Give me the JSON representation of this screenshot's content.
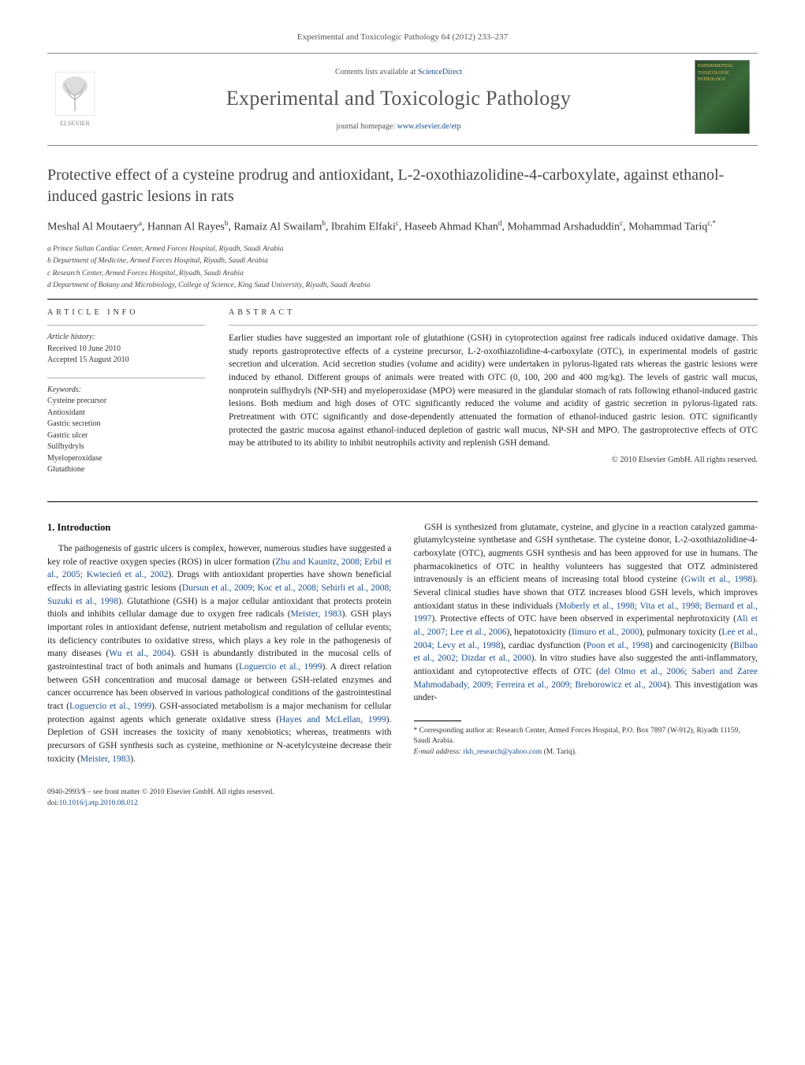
{
  "journal_ref": "Experimental and Toxicologic Pathology 64 (2012) 233–237",
  "header": {
    "publisher": "ELSEVIER",
    "contents_prefix": "Contents lists available at ",
    "contents_link": "ScienceDirect",
    "journal_name": "Experimental and Toxicologic Pathology",
    "homepage_prefix": "journal homepage: ",
    "homepage_url": "www.elsevier.de/etp",
    "cover_label": "EXPERIMENTAL TOXICOLOGIC PATHOLOGY"
  },
  "title": "Protective effect of a cysteine prodrug and antioxidant, L-2-oxothiazolidine-4-carboxylate, against ethanol-induced gastric lesions in rats",
  "authors_html": "Meshal Al Moutaery<sup>a</sup>, Hannan Al Rayes<sup>b</sup>, Ramaiz Al Swailam<sup>b</sup>, Ibrahim Elfaki<sup>c</sup>, Haseeb Ahmad Khan<sup>d</sup>, Mohammad Arshaduddin<sup>c</sup>, Mohammad Tariq<sup>c,*</sup>",
  "affiliations": [
    "a Prince Sultan Cardiac Center, Armed Forces Hospital, Riyadh, Saudi Arabia",
    "b Department of Medicine, Armed Forces Hospital, Riyadh, Saudi Arabia",
    "c Research Center, Armed Forces Hospital, Riyadh, Saudi Arabia",
    "d Department of Botany and Microbiology, College of Science, King Saud University, Riyadh, Saudi Arabia"
  ],
  "article_info": {
    "section_label": "article info",
    "history_label": "Article history:",
    "received": "Received 10 June 2010",
    "accepted": "Accepted 15 August 2010",
    "keywords_label": "Keywords:",
    "keywords": [
      "Cysteine precursor",
      "Antioxidant",
      "Gastric secretion",
      "Gastric ulcer",
      "Sulfhydryls",
      "Myeloperoxidase",
      "Glutathione"
    ]
  },
  "abstract": {
    "section_label": "abstract",
    "text": "Earlier studies have suggested an important role of glutathione (GSH) in cytoprotection against free radicals induced oxidative damage. This study reports gastroprotective effects of a cysteine precursor, L-2-oxothiazolidine-4-carboxylate (OTC), in experimental models of gastric secretion and ulceration. Acid secretion studies (volume and acidity) were undertaken in pylorus-ligated rats whereas the gastric lesions were induced by ethanol. Different groups of animals were treated with OTC (0, 100, 200 and 400 mg/kg). The levels of gastric wall mucus, nonprotein sulfhydryls (NP-SH) and myeloperoxidase (MPO) were measured in the glandular stomach of rats following ethanol-induced gastric lesions. Both medium and high doses of OTC significantly reduced the volume and acidity of gastric secretion in pylorus-ligated rats. Pretreatment with OTC significantly and dose-dependently attenuated the formation of ethanol-induced gastric lesion. OTC significantly protected the gastric mucosa against ethanol-induced depletion of gastric wall mucus, NP-SH and MPO. The gastroprotective effects of OTC may be attributed to its ability to inhibit neutrophils activity and replenish GSH demand.",
    "copyright": "© 2010 Elsevier GmbH. All rights reserved."
  },
  "intro": {
    "heading": "1. Introduction",
    "p1_pre": "The pathogenesis of gastric ulcers is complex, however, numerous studies have suggested a key role of reactive oxygen species (ROS) in ulcer formation (",
    "p1_link1": "Zhu and Kaunitz, 2008; Erbil et al., 2005; Kwiecień et al., 2002",
    "p1_mid1": "). Drugs with antioxidant properties have shown beneficial effects in alleviating gastric lesions (",
    "p1_link2": "Dursun et al., 2009; Koc et al., 2008; Sehirli et al., 2008; Suzuki et al., 1998",
    "p1_mid2": "). Glutathione (GSH) is a major cellular antioxidant that protects protein thiols and inhibits cellular damage due to oxygen free radicals (",
    "p1_link3": "Meister, 1983",
    "p1_mid3": "). GSH plays important roles in antioxidant defense, nutrient metabolism and regulation of cellular events; its deficiency contributes to oxidative stress, which plays a key role in the pathogenesis of many diseases (",
    "p1_link4": "Wu et al., 2004",
    "p1_mid4": "). GSH is abundantly distributed in the mucosal cells of gastrointestinal tract of both animals and humans (",
    "p1_link5": "Loguercio et al., 1999",
    "p1_mid5": "). A direct relation between GSH concentration and mucosal damage or between GSH-related enzymes and cancer occurrence has been observed in various pathological conditions of the gastrointestinal tract (",
    "p1_link6": "Loguercio et al., 1999",
    "p1_mid6": "). GSH-associated metabolism is a major mechanism for cellular protection against agents which generate oxidative stress (",
    "p1_link7": "Hayes and McLellan, 1999",
    "p1_mid7": "). Depletion of GSH increases the toxicity of many xenobiotics; whereas, treatments with precursors of GSH synthesis such as cysteine, methionine or N-acetylcysteine decrease their toxicity (",
    "p1_link8": "Meister, 1983",
    "p1_post": ").",
    "p2_pre": "GSH is synthesized from glutamate, cysteine, and glycine in a reaction catalyzed gamma-glutamylcysteine synthetase and GSH synthetase. The cysteine donor, L-2-oxothiazolidine-4-carboxylate (OTC), augments GSH synthesis and has been approved for use in humans. The pharmacokinetics of OTC in healthy volunteers has suggested that OTZ administered intravenously is an efficient means of increasing total blood cysteine (",
    "p2_link1": "Gwilt et al., 1998",
    "p2_mid1": "). Several clinical studies have shown that OTZ increases blood GSH levels, which improves antioxidant status in these individuals (",
    "p2_link2": "Moberly et al., 1998; Vita et al., 1998; Bernard et al., 1997",
    "p2_mid2": "). Protective effects of OTC have been observed in experimental nephrotoxicity (",
    "p2_link3": "Ali et al., 2007; Lee et al., 2006",
    "p2_mid3": "), hepatotoxicity (",
    "p2_link4": "Iimuro et al., 2000",
    "p2_mid4": "), pulmonary toxicity (",
    "p2_link5": "Lee et al., 2004; Levy et al., 1998",
    "p2_mid5": "), cardiac dysfunction (",
    "p2_link6": "Poon et al., 1998",
    "p2_mid6": ") and carcinogenicity (",
    "p2_link7": "Bilbao et al., 2002; Dizdar et al., 2000",
    "p2_mid7": "). In vitro studies have also suggested the anti-inflammatory, antioxidant and cytoprotective effects of OTC (",
    "p2_link8": "del Olmo et al., 2006; Saberi and Zaree Mahmodabady, 2009; Ferreira et al., 2009; Breborowicz et al., 2004",
    "p2_post": "). This investigation was under-"
  },
  "footnote": {
    "corr_label": "* Corresponding author at: Research Center, Armed Forces Hospital, P.O. Box 7897 (W-912), Riyadh 11159, Saudi Arabia.",
    "email_label": "E-mail address: ",
    "email": "rkh_research@yahoo.com",
    "email_suffix": " (M. Tariq)."
  },
  "footer": {
    "line1": "0940-2993/$ – see front matter © 2010 Elsevier GmbH. All rights reserved.",
    "doi_prefix": "doi:",
    "doi": "10.1016/j.etp.2010.08.012"
  },
  "colors": {
    "link": "#1a4f8f",
    "text": "#1a1a1a",
    "muted": "#555555"
  }
}
